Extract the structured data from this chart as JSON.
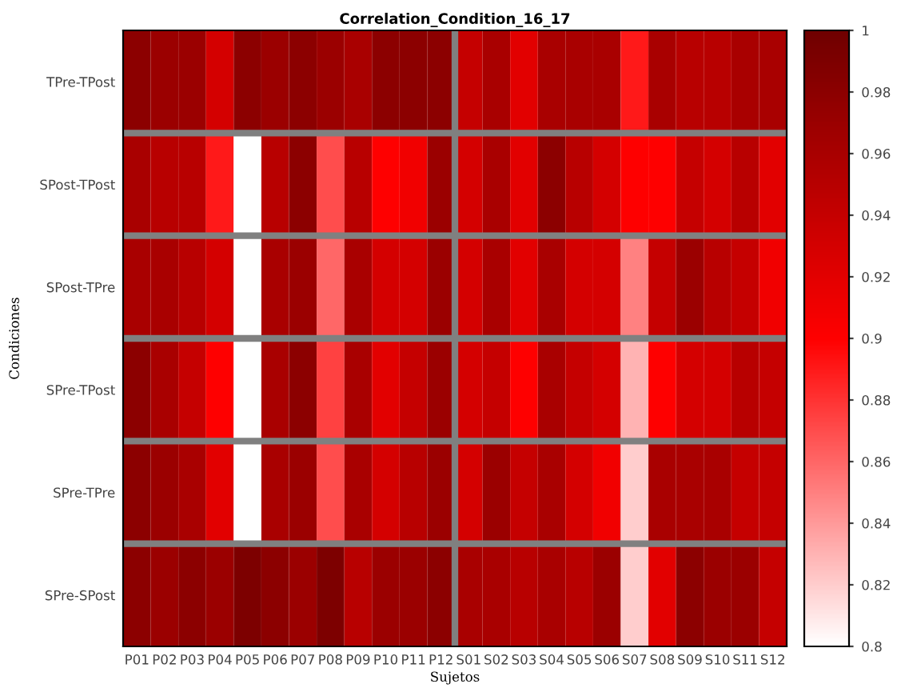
{
  "chart_data": {
    "type": "heatmap",
    "title": "Correlation_Condition_16_17",
    "xlabel": "Sujetos",
    "ylabel": "Condiciones",
    "categories": [
      "P01",
      "P02",
      "P03",
      "P04",
      "P05",
      "P06",
      "P07",
      "P08",
      "P09",
      "P10",
      "P11",
      "P12",
      "S01",
      "S02",
      "S03",
      "S04",
      "S05",
      "S06",
      "S07",
      "S08",
      "S09",
      "S10",
      "S11",
      "S12"
    ],
    "y_categories": [
      "TPre-TPost",
      "SPost-TPost",
      "SPost-TPre",
      "SPre-TPost",
      "SPre-TPre",
      "SPre-SPost"
    ],
    "cells": [
      [
        0.98,
        0.97,
        0.97,
        0.93,
        0.98,
        0.97,
        0.98,
        0.97,
        0.96,
        0.98,
        0.98,
        0.98,
        0.94,
        0.96,
        0.92,
        0.96,
        0.96,
        0.96,
        0.89,
        0.96,
        0.95,
        0.95,
        0.96,
        0.96
      ],
      [
        0.96,
        0.95,
        0.95,
        0.89,
        0.8,
        0.95,
        0.98,
        0.87,
        0.95,
        0.9,
        0.91,
        0.97,
        0.93,
        0.96,
        0.92,
        0.98,
        0.95,
        0.93,
        0.9,
        0.9,
        0.94,
        0.93,
        0.95,
        0.92
      ],
      [
        0.96,
        0.96,
        0.95,
        0.93,
        0.8,
        0.96,
        0.97,
        0.86,
        0.96,
        0.93,
        0.93,
        0.97,
        0.93,
        0.96,
        0.92,
        0.96,
        0.93,
        0.93,
        0.85,
        0.94,
        0.97,
        0.95,
        0.94,
        0.91
      ],
      [
        0.98,
        0.96,
        0.94,
        0.9,
        0.8,
        0.96,
        0.98,
        0.875,
        0.96,
        0.92,
        0.94,
        0.97,
        0.93,
        0.94,
        0.9,
        0.96,
        0.94,
        0.93,
        0.83,
        0.9,
        0.93,
        0.93,
        0.95,
        0.94
      ],
      [
        0.98,
        0.97,
        0.96,
        0.92,
        0.8,
        0.96,
        0.97,
        0.87,
        0.96,
        0.93,
        0.95,
        0.97,
        0.93,
        0.97,
        0.94,
        0.96,
        0.93,
        0.91,
        0.82,
        0.96,
        0.96,
        0.96,
        0.94,
        0.94
      ],
      [
        0.98,
        0.97,
        0.98,
        0.97,
        0.99,
        0.98,
        0.97,
        0.99,
        0.95,
        0.97,
        0.97,
        0.98,
        0.96,
        0.96,
        0.95,
        0.96,
        0.95,
        0.97,
        0.82,
        0.92,
        0.98,
        0.97,
        0.97,
        0.94
      ]
    ],
    "clim": [
      0.8,
      1
    ],
    "cticks": [
      0.8,
      0.82,
      0.84,
      0.86,
      0.88,
      0.9,
      0.92,
      0.94,
      0.96,
      0.98,
      1
    ],
    "colors": [
      "#ffffff",
      "#ff0000",
      "#700000"
    ]
  }
}
